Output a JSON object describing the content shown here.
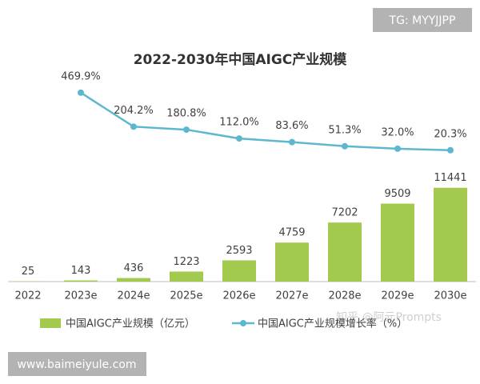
{
  "chart_data": {
    "type": "bar-line",
    "title": "2022-2030年中国AIGC产业规模",
    "categories": [
      "2022",
      "2023e",
      "2024e",
      "2025e",
      "2026e",
      "2027e",
      "2028e",
      "2029e",
      "2030e"
    ],
    "series": [
      {
        "name": "中国AIGC产业规模（亿元）",
        "type": "bar",
        "color": "#a3c94e",
        "values": [
          25,
          143,
          436,
          1223,
          2593,
          4759,
          7202,
          9509,
          11441
        ]
      },
      {
        "name": "中国AIGC产业规模增长率（%）",
        "type": "line",
        "axis": "y2",
        "color": "#5db7cf",
        "values": [
          null,
          469.9,
          204.2,
          180.8,
          112.0,
          83.6,
          51.3,
          32.0,
          20.3
        ],
        "value_labels": [
          null,
          "469.9%",
          "204.2%",
          "180.8%",
          "112.0%",
          "83.6%",
          "51.3%",
          "32.0%",
          "20.3%"
        ]
      }
    ],
    "ylim": [
      0,
      12000
    ],
    "y2lim": [
      0,
      500
    ],
    "watermarks": [
      "TG: MYYJJPP",
      "www.baimeiyule.com",
      "知乎 @阿元Prompts"
    ]
  }
}
